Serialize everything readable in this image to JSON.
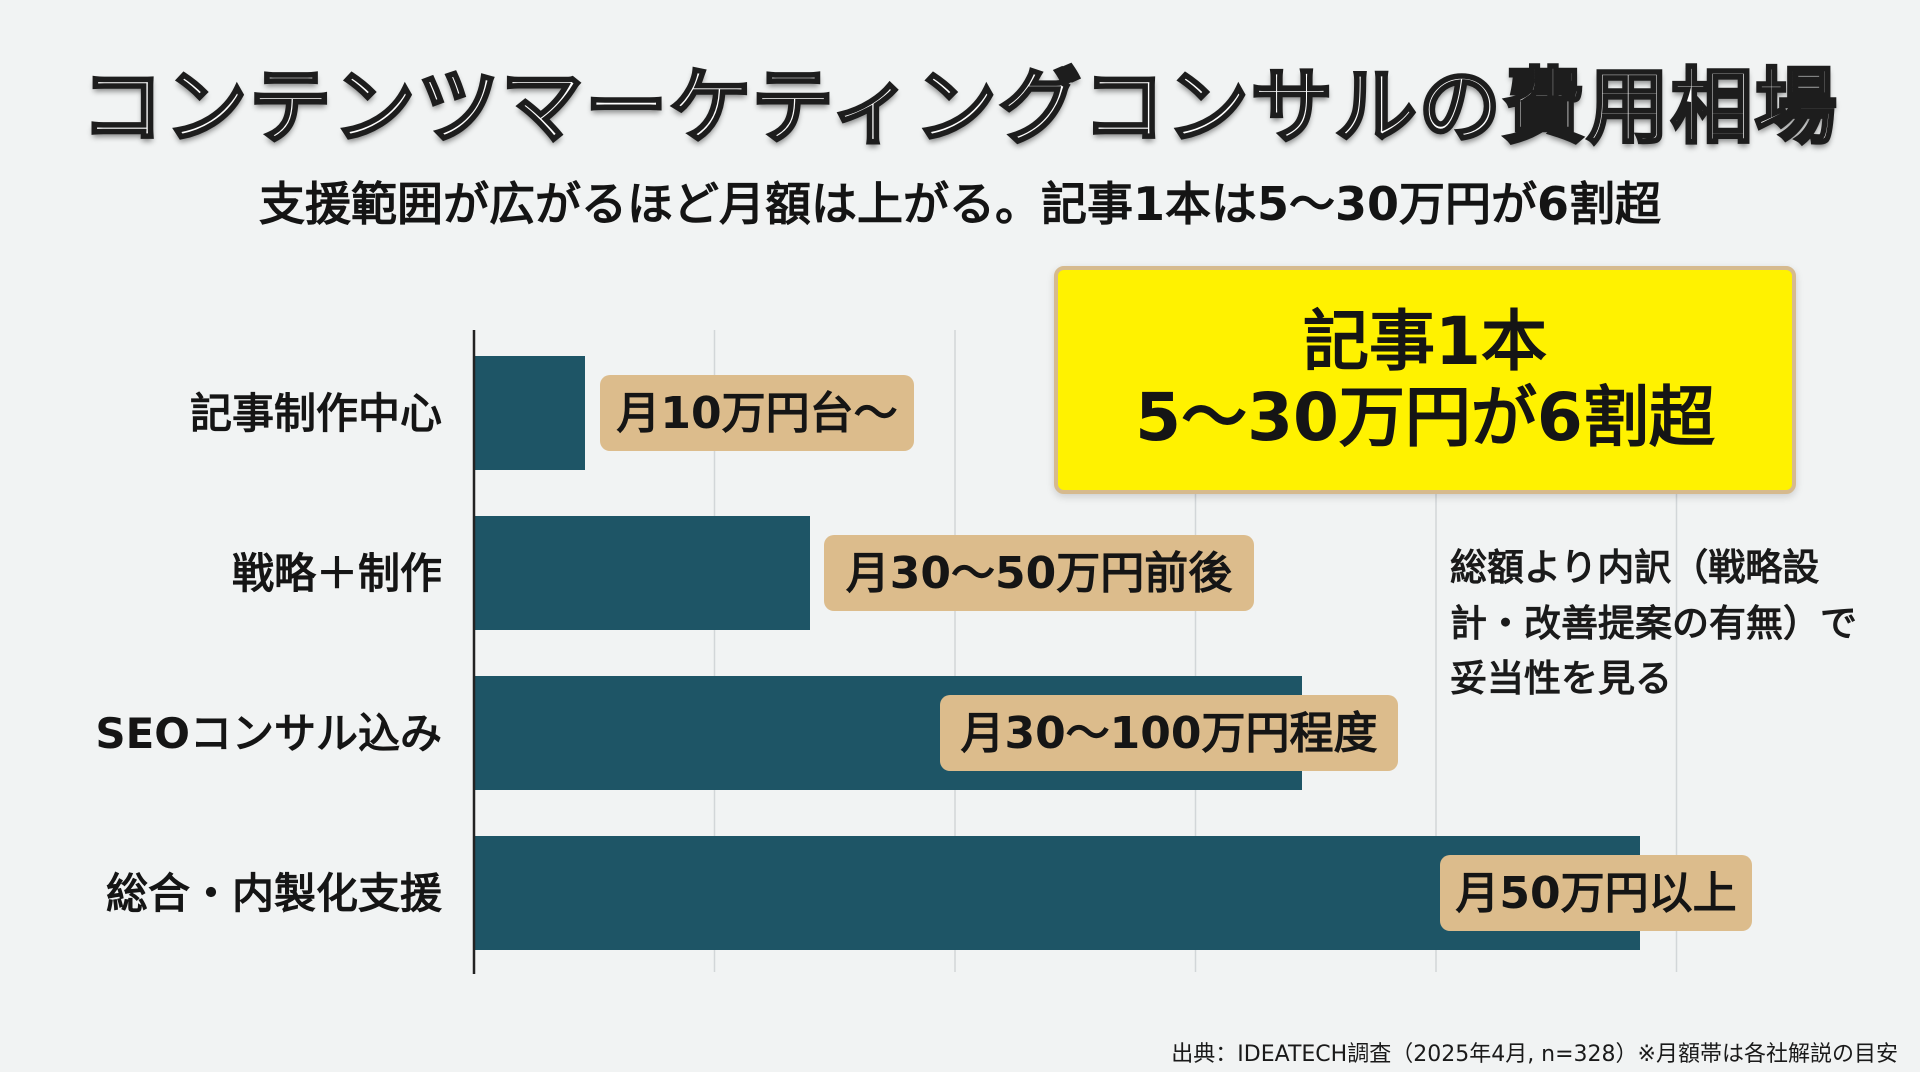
{
  "header": {
    "title": "コンテンツマーケティングコンサルの費用相場",
    "subtitle": "支援範囲が広がるほど月額は上がる。記事1本は5〜30万円が6割超"
  },
  "callout": {
    "line1": "記事1本",
    "line2": "5〜30万円が6割超"
  },
  "note": "総額より内訳（戦略設計・改善提案の有無）で妥当性を見る",
  "source": "出典：IDEATECH調査（2025年4月, n=328）※月額帯は各社解説の目安",
  "colors": {
    "bar": "#1e5566",
    "label_bg": "#dcbc8c",
    "callout_bg": "#fff200",
    "grid": "#d2d6d8",
    "axis": "#222222"
  },
  "chart_data": {
    "type": "bar",
    "orientation": "horizontal",
    "title": "",
    "xlabel": "",
    "ylabel": "",
    "unit": "万円/月",
    "categories": [
      "記事制作中心",
      "戦略＋制作",
      "SEOコンサル込み",
      "総合・内製化支援"
    ],
    "values": [
      10,
      30,
      30,
      50
    ],
    "value_labels": [
      "月10万円台〜",
      "月30〜50万円前後",
      "月30〜100万円程度",
      "月50万円以上"
    ],
    "grid": true,
    "x_axis_labels": false
  }
}
